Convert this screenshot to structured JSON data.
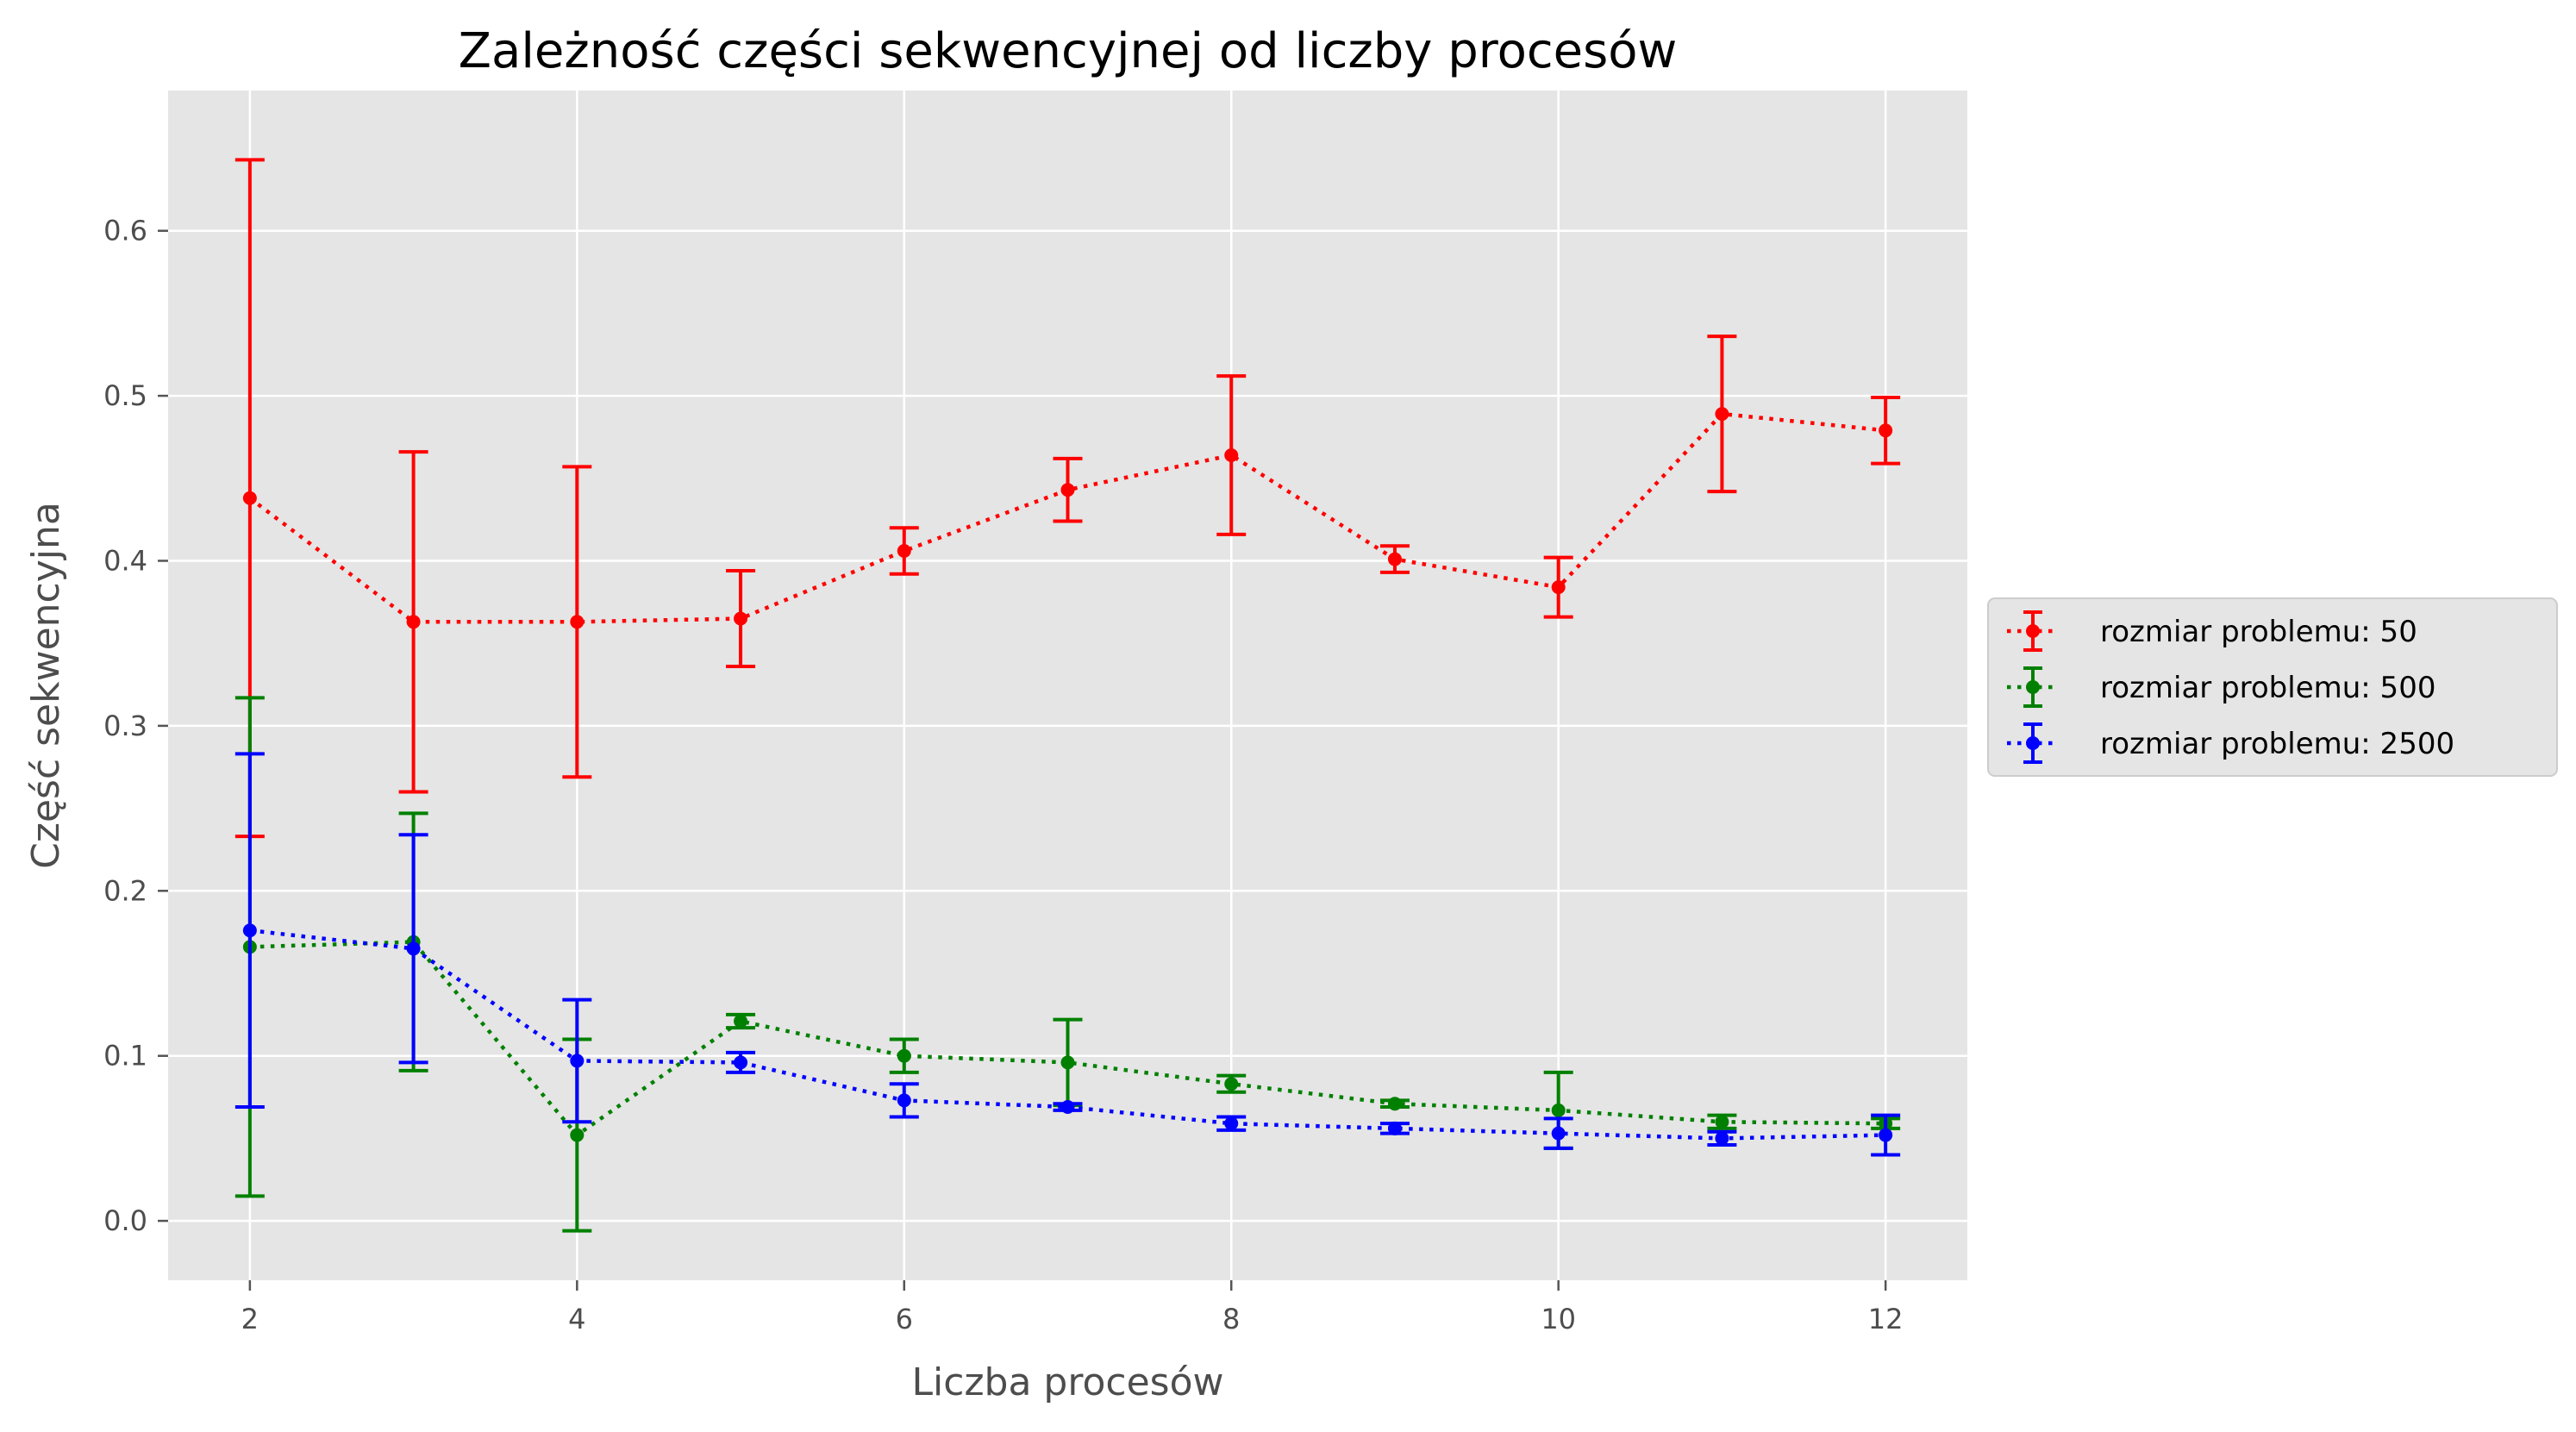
{
  "chart_data": {
    "type": "line",
    "title": "Zależność części sekwencyjnej od liczby procesów",
    "xlabel": "Liczba procesów",
    "ylabel": "Część sekwencyjna",
    "xlim": [
      1.5,
      12.5
    ],
    "ylim": [
      -0.036,
      0.685
    ],
    "xticks": [
      "2",
      "4",
      "6",
      "8",
      "10",
      "12"
    ],
    "yticks": [
      "0.0",
      "0.1",
      "0.2",
      "0.3",
      "0.4",
      "0.5",
      "0.6"
    ],
    "grid": true,
    "background": "#e5e5e5",
    "legend_position": "right",
    "line_style": "dotted",
    "marker": "circle",
    "error_bars": true,
    "x": [
      2,
      3,
      4,
      5,
      6,
      7,
      8,
      9,
      10,
      11,
      12
    ],
    "series": [
      {
        "name": "rozmiar problemu: 50",
        "color": "#ff0000",
        "values": [
          0.438,
          0.363,
          0.363,
          0.365,
          0.406,
          0.443,
          0.464,
          0.401,
          0.384,
          0.489,
          0.479
        ],
        "errors": [
          0.205,
          0.103,
          0.094,
          0.029,
          0.014,
          0.019,
          0.048,
          0.008,
          0.018,
          0.047,
          0.02
        ]
      },
      {
        "name": "rozmiar problemu: 500",
        "color": "#008000",
        "values": [
          0.166,
          0.169,
          0.052,
          0.121,
          0.1,
          0.096,
          0.083,
          0.071,
          0.067,
          0.06,
          0.059
        ],
        "errors": [
          0.151,
          0.078,
          0.058,
          0.004,
          0.01,
          0.026,
          0.005,
          0.002,
          0.023,
          0.004,
          0.003
        ]
      },
      {
        "name": "rozmiar problemu: 2500",
        "color": "#0000ff",
        "values": [
          0.176,
          0.165,
          0.097,
          0.096,
          0.073,
          0.069,
          0.059,
          0.056,
          0.053,
          0.05,
          0.052
        ],
        "errors": [
          0.107,
          0.069,
          0.037,
          0.006,
          0.01,
          0.002,
          0.004,
          0.003,
          0.009,
          0.004,
          0.012
        ]
      }
    ]
  }
}
